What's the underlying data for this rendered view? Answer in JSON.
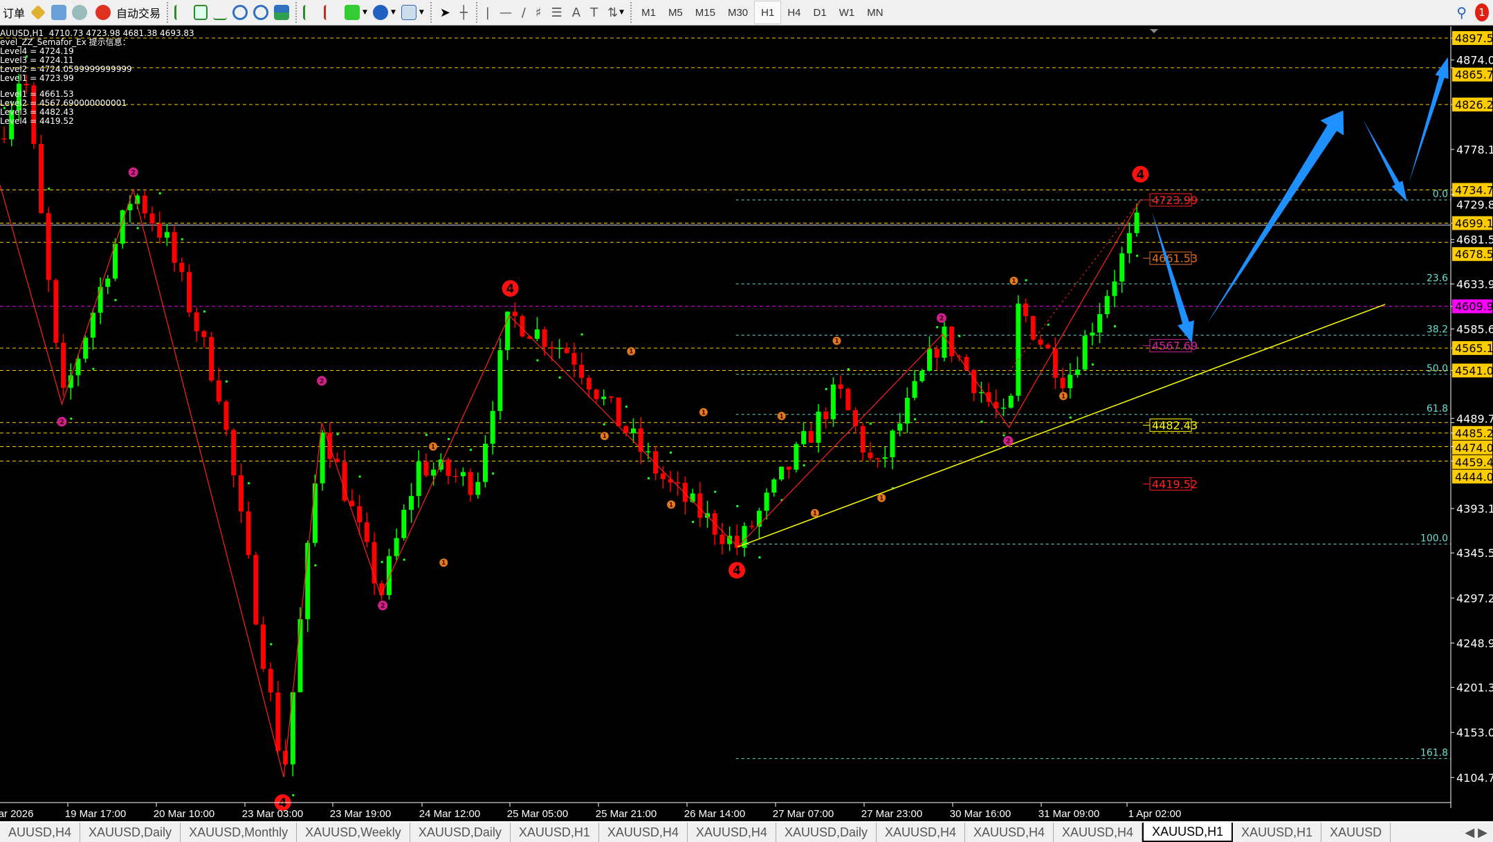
{
  "toolbar": {
    "new_order": "订单",
    "auto_trading": "自动交易",
    "timeframes": [
      "M1",
      "M5",
      "M15",
      "M30",
      "H1",
      "H4",
      "D1",
      "W1",
      "MN"
    ],
    "active_timeframe": "H1",
    "notification_count": "1"
  },
  "info": {
    "header": "AUUSD,H1  4710.73 4723.98 4681.38 4693.83",
    "indicator": "evel_ZZ_Semafor_Ex 提示信息：",
    "upper": [
      "Level4 = 4724.19",
      "Level3 = 4724.11",
      "Level2 = 4724.0599999999999",
      "Level1 = 4723.99"
    ],
    "lower": [
      "Level1 = 4661.53",
      "Level2 = 4567.690000000001",
      "Level3 = 4482.43",
      "Level4 = 4419.52"
    ]
  },
  "price_axis": {
    "ticks": [
      "4874.00",
      "4778.10",
      "4729.80",
      "4681.50",
      "4633.90",
      "4585.60",
      "4489.70",
      "4393.10",
      "4345.50",
      "4297.20",
      "4248.90",
      "4201.30",
      "4153.00",
      "4104.70"
    ],
    "boxed": [
      "4897.55",
      "4865.77",
      "4826.26",
      "4734.75",
      "4699.13",
      "4678.52",
      "4565.14",
      "4541.09",
      "4485.26",
      "4474.09",
      "4459.49",
      "4444.03"
    ],
    "current": "4609.91"
  },
  "fib_levels": [
    {
      "label": "0.0",
      "price": 4723.98
    },
    {
      "label": "23.6",
      "price": 4634
    },
    {
      "label": "38.2",
      "price": 4579
    },
    {
      "label": "50.0",
      "price": 4537
    },
    {
      "label": "61.8",
      "price": 4494
    },
    {
      "label": "100.0",
      "price": 4355
    },
    {
      "label": "161.8",
      "price": 4125
    }
  ],
  "chart_labels": [
    {
      "text": "4723.99",
      "color": "#ff2020",
      "price": 4724
    },
    {
      "text": "4661.53",
      "color": "#e07020",
      "price": 4661.53
    },
    {
      "text": "4567.69",
      "color": "#d020a0",
      "price": 4567.69
    },
    {
      "text": "4482.43",
      "color": "#ffff00",
      "price": 4482.43
    },
    {
      "text": "4419.52",
      "color": "#ff2020",
      "price": 4419.52
    }
  ],
  "time_axis": [
    "ar 2026",
    "19 Mar 17:00",
    "20 Mar 10:00",
    "23 Mar 03:00",
    "23 Mar 19:00",
    "24 Mar 12:00",
    "25 Mar 05:00",
    "25 Mar 21:00",
    "26 Mar 14:00",
    "27 Mar 07:00",
    "27 Mar 23:00",
    "30 Mar 16:00",
    "31 Mar 09:00",
    "1 Apr 02:00"
  ],
  "tabs": [
    "AUUSD,H4",
    "XAUUSD,Daily",
    "XAUUSD,Monthly",
    "XAUUSD,Weekly",
    "XAUUSD,Daily",
    "XAUUSD,H1",
    "XAUUSD,H4",
    "XAUUSD,H4",
    "XAUUSD,Daily",
    "XAUUSD,H4",
    "XAUUSD,H4",
    "XAUUSD,H4",
    "XAUUSD,H1",
    "XAUUSD,H1",
    "XAUUSD"
  ],
  "active_tab": 12,
  "colors": {
    "bull": "#00ff00",
    "bear": "#ff0000",
    "level_line": "#ffcc00",
    "fib": "#66e0d0",
    "arrow": "#1e90ff",
    "trendline": "#ffff00",
    "magenta": "#ff00ff"
  }
}
